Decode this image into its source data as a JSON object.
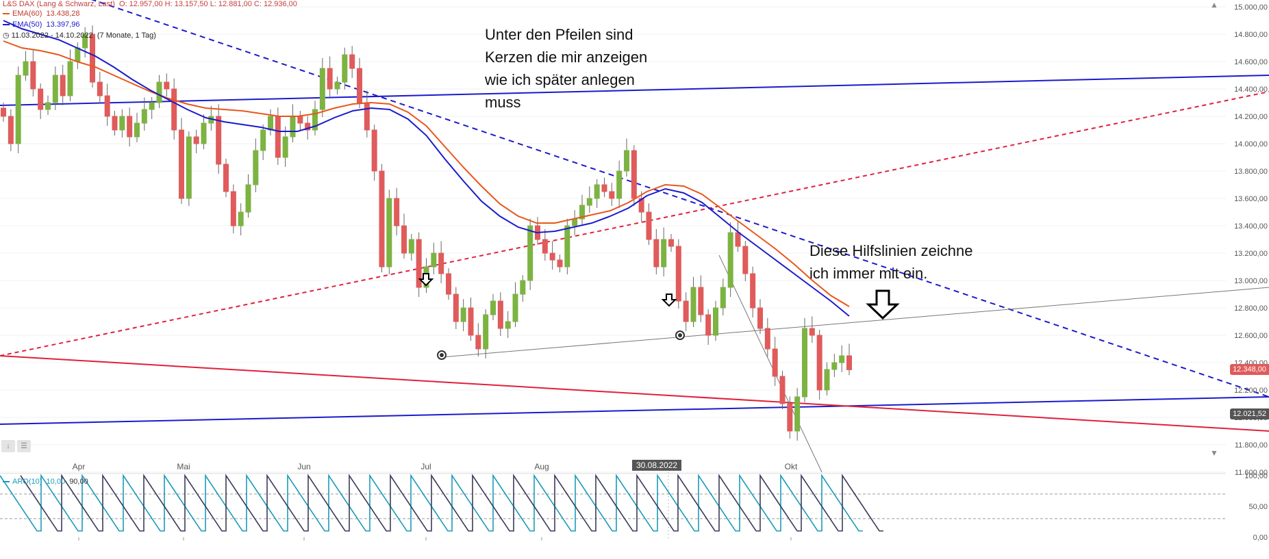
{
  "header": {
    "instrument": "L&S DAX (Lang & Schwarz, Last)",
    "ohlc": "O: 12.957,00  H: 13.157,50  L: 12.881,00  C: 12.936,00",
    "ema60_label": "EMA(60)",
    "ema60_value": "13.438,28",
    "ema50_label": "EMA(50)",
    "ema50_value": "13.397,96",
    "range": "11.03.2022 - 14.10.2022",
    "period": "(7 Monate, 1 Tag)"
  },
  "annotations": {
    "top": "Unter den Pfeilen sind\nKerzen die mir anzeigen\nwie ich später anlegen\nmuss",
    "right": "Diese Hilfslinien zeichne\nich immer mit ein."
  },
  "price_tags": {
    "last": "12.348,00",
    "level": "12.021,52"
  },
  "date_marker": "30.08.2022",
  "aroon": {
    "label": "ARO(10)",
    "up": "10,00",
    "down": "90,00",
    "ticks": [
      "100,00",
      "50,00",
      "0,00"
    ]
  },
  "colors": {
    "bull": "#7cb342",
    "bear": "#e05b5b",
    "ema60": "#e8561a",
    "ema50": "#1a1acd",
    "trend_blue": "#1a1acd",
    "trend_red": "#e0203a",
    "aroon_up": "#1a9bb8",
    "aroon_down": "#3a3a5a"
  },
  "chart_data": {
    "type": "candlestick",
    "title": "L&S DAX (Lang & Schwarz, Last)",
    "xlabel": "",
    "ylabel": "",
    "ylim": [
      11600,
      15000
    ],
    "x_ticks": [
      "Apr",
      "Mai",
      "Jun",
      "Jul",
      "Aug",
      "Okt"
    ],
    "y_ticks": [
      "11.600,00",
      "11.800,00",
      "12.000,00",
      "12.200,00",
      "12.400,00",
      "12.600,00",
      "12.800,00",
      "13.000,00",
      "13.200,00",
      "13.400,00",
      "13.600,00",
      "13.800,00",
      "14.000,00",
      "14.200,00",
      "14.400,00",
      "14.600,00",
      "14.800,00",
      "15.000,00"
    ],
    "candles_close": [
      14200,
      14000,
      14500,
      14600,
      14400,
      14250,
      14300,
      14500,
      14350,
      14600,
      14700,
      14800,
      14450,
      14350,
      14200,
      14100,
      14200,
      14050,
      14150,
      14250,
      14300,
      14450,
      14400,
      14100,
      13600,
      14050,
      14000,
      14150,
      14200,
      13850,
      13650,
      13400,
      13500,
      13700,
      13950,
      14100,
      14200,
      13900,
      14050,
      14200,
      14150,
      14100,
      14250,
      14550,
      14400,
      14450,
      14650,
      14550,
      14300,
      14100,
      13800,
      13100,
      13600,
      13400,
      13200,
      13300,
      12950,
      13100,
      13200,
      13050,
      12900,
      12700,
      12800,
      12600,
      12500,
      12750,
      12850,
      12650,
      12700,
      12900,
      13000,
      13400,
      13300,
      13200,
      13150,
      13100,
      13400,
      13450,
      13550,
      13600,
      13700,
      13650,
      13600,
      13800,
      13950,
      13600,
      13500,
      13300,
      13100,
      13300,
      13250,
      12850,
      12700,
      12950,
      12750,
      12600,
      12800,
      12950,
      13350,
      13250,
      13050,
      12800,
      12650,
      12500,
      12300,
      12100,
      11900,
      12150,
      12650,
      12600,
      12200,
      12350,
      12400,
      12450,
      12348
    ],
    "ema60": [
      14750,
      14700,
      14680,
      14650,
      14600,
      14560,
      14500,
      14440,
      14380,
      14330,
      14290,
      14260,
      14250,
      14240,
      14220,
      14200,
      14200,
      14220,
      14260,
      14290,
      14300,
      14290,
      14230,
      14130,
      13980,
      13830,
      13690,
      13560,
      13470,
      13420,
      13420,
      13450,
      13480,
      13510,
      13570,
      13650,
      13700,
      13690,
      13630,
      13530,
      13430,
      13330,
      13230,
      13120,
      13000,
      12890,
      12810
    ],
    "ema50": [
      14900,
      14840,
      14800,
      14760,
      14700,
      14640,
      14560,
      14470,
      14390,
      14320,
      14250,
      14190,
      14160,
      14140,
      14120,
      14090,
      14090,
      14130,
      14190,
      14240,
      14260,
      14250,
      14180,
      14060,
      13890,
      13730,
      13580,
      13470,
      13390,
      13350,
      13360,
      13390,
      13420,
      13470,
      13530,
      13620,
      13670,
      13640,
      13570,
      13460,
      13350,
      13250,
      13150,
      13050,
      12950,
      12850,
      12740
    ],
    "trendlines": [
      {
        "name": "blue-dashed-downtrend",
        "from": {
          "date": "11.03.2022",
          "price": 15280
        },
        "to": {
          "date": "14.10.2022",
          "price": 12150
        }
      },
      {
        "name": "red-dashed-uptrend",
        "from": {
          "date": "11.03.2022",
          "price": 12450
        },
        "to": {
          "date": "14.10.2022",
          "price": 14380
        }
      },
      {
        "name": "blue-resistance",
        "from": {
          "date": "11.03.2022",
          "price": 14280
        },
        "to": {
          "date": "14.10.2022",
          "price": 14500
        }
      },
      {
        "name": "blue-support",
        "from": {
          "date": "11.03.2022",
          "price": 11950
        },
        "to": {
          "date": "14.10.2022",
          "price": 12150
        }
      },
      {
        "name": "red-support",
        "from": {
          "date": "11.03.2022",
          "price": 12450
        },
        "to": {
          "date": "14.10.2022",
          "price": 11900
        }
      },
      {
        "name": "grey-support",
        "from": {
          "date": "01.07.2022",
          "price": 12440
        },
        "to": {
          "date": "14.10.2022",
          "price": 12950
        }
      }
    ]
  }
}
